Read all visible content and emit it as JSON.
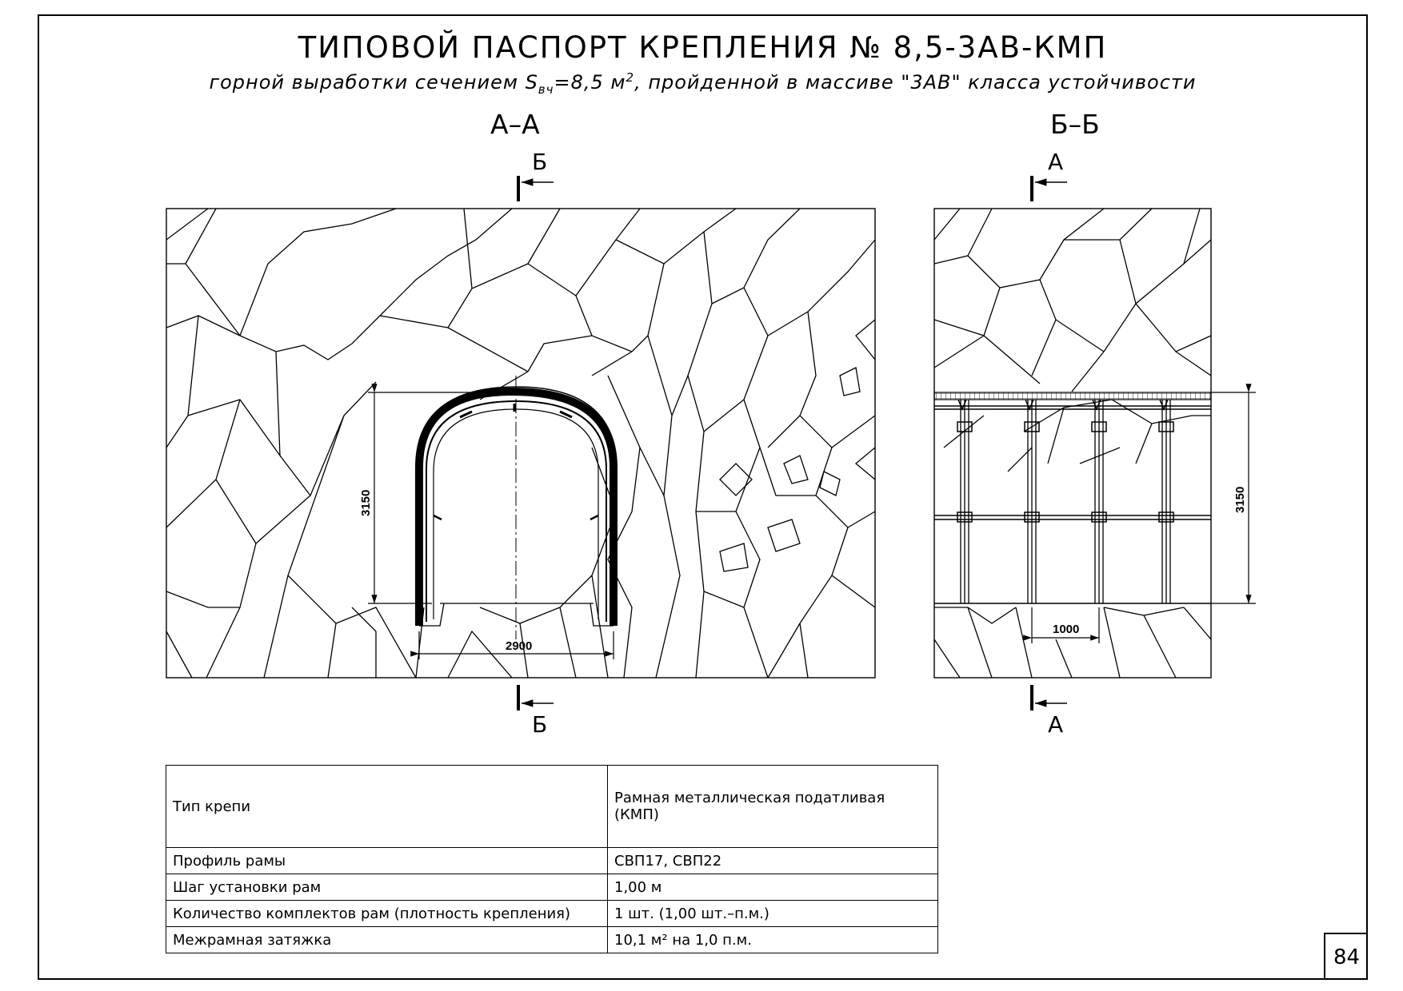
{
  "title": "ТИПОВОЙ ПАСПОРТ КРЕПЛЕНИЯ № 8,5-3АВ-КМП",
  "subtitle": {
    "pre": "горной выработки сечением S",
    "sub": "вч",
    "mid": "=8,5 м",
    "sup": "2",
    "post": ", пройденной в массиве \"3АВ\" класса устойчивости"
  },
  "sections": {
    "left": {
      "label": "А–А",
      "cut_top": "Б",
      "cut_bottom": "Б",
      "dim_height": "3150",
      "dim_width": "2900"
    },
    "right": {
      "label": "Б–Б",
      "cut_top": "А",
      "cut_bottom": "А",
      "dim_height": "3150",
      "dim_step": "1000"
    }
  },
  "table": {
    "rows": [
      {
        "param": "Тип крепи",
        "value": "Рамная металлическая податливая (КМП)"
      },
      {
        "param": "Профиль рамы",
        "value": "СВП17, СВП22"
      },
      {
        "param": "Шаг установки рам",
        "value": "1,00 м"
      },
      {
        "param": "Количество комплектов рам (плотность крепления)",
        "value": "1 шт. (1,00 шт.–п.м.)"
      },
      {
        "param": "Межрамная затяжка",
        "value": "10,1 м² на 1,0 п.м."
      }
    ]
  },
  "page_number": "84"
}
